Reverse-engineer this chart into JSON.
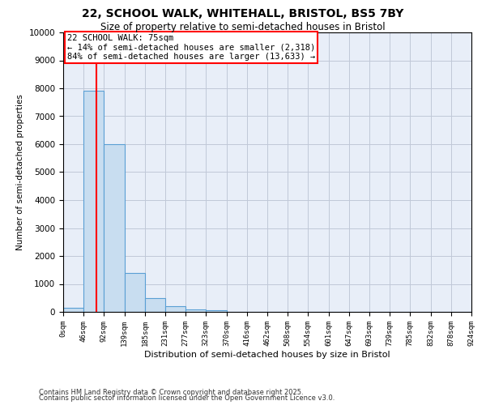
{
  "title1": "22, SCHOOL WALK, WHITEHALL, BRISTOL, BS5 7BY",
  "title2": "Size of property relative to semi-detached houses in Bristol",
  "xlabel": "Distribution of semi-detached houses by size in Bristol",
  "ylabel": "Number of semi-detached properties",
  "property_label": "22 SCHOOL WALK: 75sqm",
  "pct_smaller": 14,
  "pct_larger": 84,
  "n_smaller": 2318,
  "n_larger": 13633,
  "bin_edges": [
    0,
    46,
    92,
    139,
    185,
    231,
    277,
    323,
    370,
    416,
    462,
    508,
    554,
    601,
    647,
    693,
    739,
    785,
    832,
    878,
    924
  ],
  "bin_labels": [
    "0sqm",
    "46sqm",
    "92sqm",
    "139sqm",
    "185sqm",
    "231sqm",
    "277sqm",
    "323sqm",
    "370sqm",
    "416sqm",
    "462sqm",
    "508sqm",
    "554sqm",
    "601sqm",
    "647sqm",
    "693sqm",
    "739sqm",
    "785sqm",
    "832sqm",
    "878sqm",
    "924sqm"
  ],
  "bar_heights": [
    150,
    7900,
    6000,
    1400,
    480,
    200,
    100,
    50,
    0,
    0,
    0,
    0,
    0,
    0,
    0,
    0,
    0,
    0,
    0,
    0
  ],
  "ylim": [
    0,
    10000
  ],
  "yticks": [
    0,
    1000,
    2000,
    3000,
    4000,
    5000,
    6000,
    7000,
    8000,
    9000,
    10000
  ],
  "red_line_x": 75,
  "bar_edgecolor": "#5a9fd4",
  "bar_facecolor": "#c8ddf0",
  "grid_color": "#c0c8d8",
  "bg_color": "#e8eef8",
  "footer1": "Contains HM Land Registry data © Crown copyright and database right 2025.",
  "footer2": "Contains public sector information licensed under the Open Government Licence v3.0."
}
